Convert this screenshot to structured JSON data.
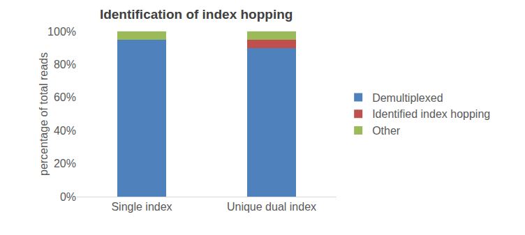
{
  "chart_data": {
    "type": "bar",
    "title": "Identification of index hopping",
    "categories": [
      "Single index",
      "Unique dual index"
    ],
    "series": [
      {
        "name": "Demultiplexed",
        "color": "#4f81bd",
        "values": [
          95,
          90
        ]
      },
      {
        "name": "Identified index hopping",
        "color": "#c0504d",
        "values": [
          0,
          5
        ]
      },
      {
        "name": "Other",
        "color": "#9bbb59",
        "values": [
          5,
          5
        ]
      }
    ],
    "stacked": true,
    "y_label": "percentage of total reads",
    "ylim": [
      0,
      100
    ],
    "yticks": [
      {
        "value": 0,
        "label": "0%"
      },
      {
        "value": 20,
        "label": "20%"
      },
      {
        "value": 40,
        "label": "40%"
      },
      {
        "value": 60,
        "label": "60%"
      },
      {
        "value": 80,
        "label": "80%"
      },
      {
        "value": 100,
        "label": "100%"
      }
    ],
    "grid": false,
    "legend": "right"
  }
}
